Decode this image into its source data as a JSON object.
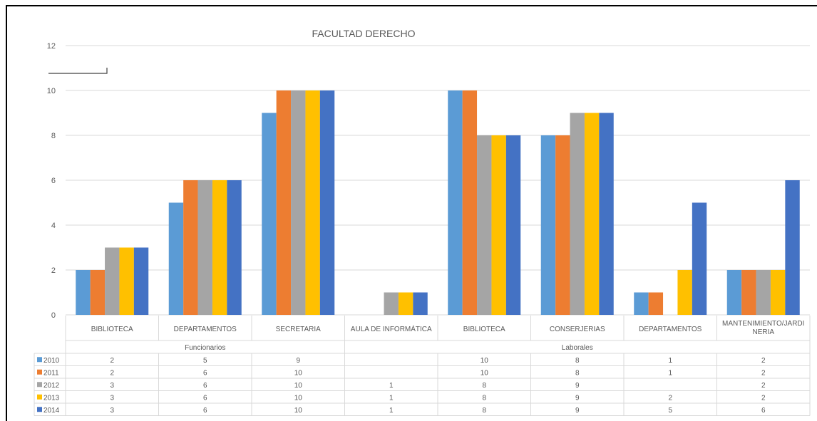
{
  "chart_data": {
    "type": "bar",
    "title": "FACULTAD DERECHO",
    "ylim": [
      0,
      12
    ],
    "yticks": [
      "0",
      "2",
      "4",
      "6",
      "8",
      "10",
      "12"
    ],
    "grid": true,
    "categories": [
      "BIBLIOTECA",
      "DEPARTAMENTOS",
      "SECRETARIA",
      "AULA DE INFORMÁTICA",
      "BIBLIOTECA",
      "CONSERJERIAS",
      "DEPARTAMENTOS",
      "MANTENIMIENTO/JARDI NERIA"
    ],
    "groups": [
      {
        "label": "Funcionarios",
        "count": 3
      },
      {
        "label": "Laborales",
        "count": 5
      }
    ],
    "series": [
      {
        "name": "2010",
        "color": "#5B9BD5",
        "values": [
          2,
          5,
          9,
          null,
          10,
          8,
          1,
          2
        ]
      },
      {
        "name": "2011",
        "color": "#ED7D31",
        "values": [
          2,
          6,
          10,
          null,
          10,
          8,
          1,
          2
        ]
      },
      {
        "name": "2012",
        "color": "#A5A5A5",
        "values": [
          3,
          6,
          10,
          1,
          8,
          9,
          null,
          2
        ]
      },
      {
        "name": "2013",
        "color": "#FFC000",
        "values": [
          3,
          6,
          10,
          1,
          8,
          9,
          2,
          2
        ]
      },
      {
        "name": "2014",
        "color": "#4472C4",
        "values": [
          3,
          6,
          10,
          1,
          8,
          9,
          5,
          6
        ]
      }
    ],
    "legend": "data-table"
  }
}
